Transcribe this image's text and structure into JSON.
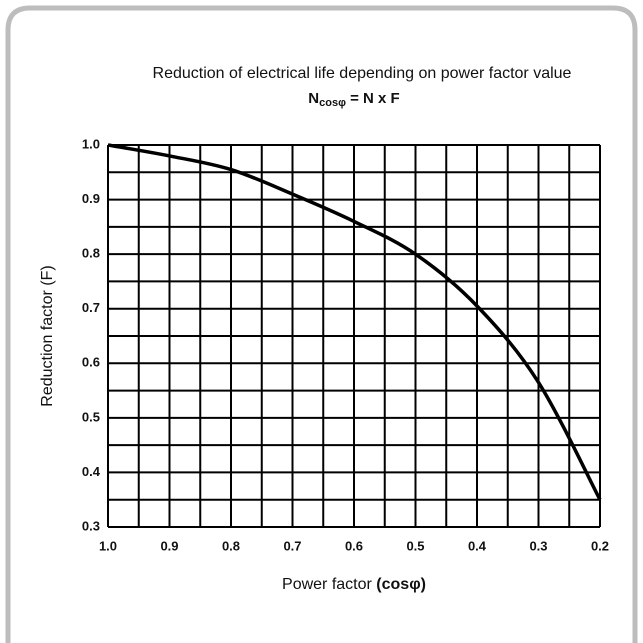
{
  "chart_data": {
    "type": "line",
    "title": "Reduction of electrical life depending on power factor value",
    "subtitle": {
      "main": "N",
      "sub": "cosφ",
      "rest": " = N x F"
    },
    "x_label": {
      "plain": "Power factor ",
      "bold": "(cosφ)"
    },
    "y_label": "Reduction factor (F)",
    "x": [
      1.0,
      0.9,
      0.8,
      0.7,
      0.6,
      0.5,
      0.4,
      0.3,
      0.2
    ],
    "series": [
      {
        "name": "F",
        "color": "#000000",
        "values": [
          1.0,
          0.98,
          0.955,
          0.91,
          0.86,
          0.8,
          0.705,
          0.565,
          0.35
        ]
      }
    ],
    "xlim": [
      1.0,
      0.2
    ],
    "ylim": [
      0.3,
      1.0
    ],
    "xticks": [
      {
        "value": 1.0,
        "label": "1.0"
      },
      0.9,
      0.8,
      0.7,
      0.6,
      0.5,
      0.4,
      0.3,
      0.2
    ],
    "yticks": [
      0.3,
      0.4,
      0.5,
      0.6,
      0.7,
      0.8,
      0.9,
      {
        "value": 1.0,
        "label": "1.0"
      }
    ],
    "xgrid": [
      0.95,
      0.85,
      0.75,
      0.65,
      0.55,
      0.45,
      0.35,
      0.25
    ],
    "ygrid": [
      0.35,
      0.45,
      0.55,
      0.65,
      0.75,
      0.85,
      0.95
    ],
    "grid": true
  }
}
